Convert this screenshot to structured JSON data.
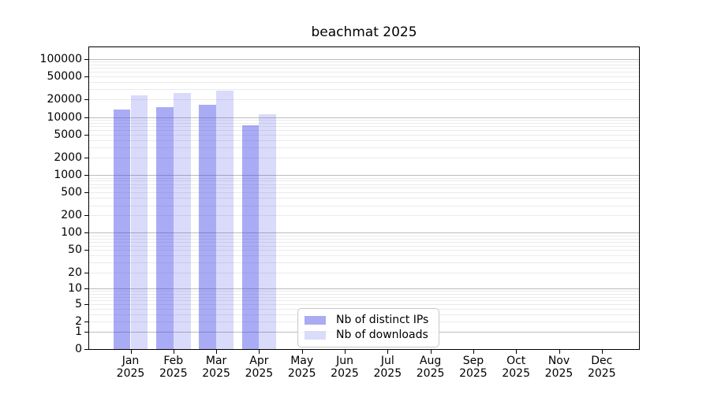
{
  "title": "beachmat 2025",
  "chart_data": {
    "type": "bar",
    "title": "beachmat 2025",
    "x_months": [
      "Jan",
      "Feb",
      "Mar",
      "Apr",
      "May",
      "Jun",
      "Jul",
      "Aug",
      "Sep",
      "Oct",
      "Nov",
      "Dec"
    ],
    "x_year": "2025",
    "series": [
      {
        "name": "Nb of distinct IPs",
        "color": "rgba(60,65,230,0.44)",
        "swatch": "#a9abf3",
        "values": [
          13400,
          14800,
          16100,
          7300,
          null,
          null,
          null,
          null,
          null,
          null,
          null,
          null
        ]
      },
      {
        "name": "Nb of downloads",
        "color": "rgba(60,65,230,0.19)",
        "swatch": "#dadcfa",
        "values": [
          23700,
          25800,
          28700,
          11250,
          null,
          null,
          null,
          null,
          null,
          null,
          null,
          null
        ]
      }
    ],
    "y_ticks": [
      100000,
      50000,
      20000,
      10000,
      5000,
      2000,
      1000,
      500,
      200,
      100,
      50,
      20,
      10,
      5,
      2,
      1,
      0
    ],
    "y_scale": "log10(value+1)",
    "y_top_units": 5.204,
    "grid": true,
    "legend_position": "bottom-center",
    "colors": {
      "major_gridline": "#bcbcbc",
      "minor_gridline": "#ebebeb",
      "spine": "#000000",
      "background": "#ffffff"
    }
  }
}
